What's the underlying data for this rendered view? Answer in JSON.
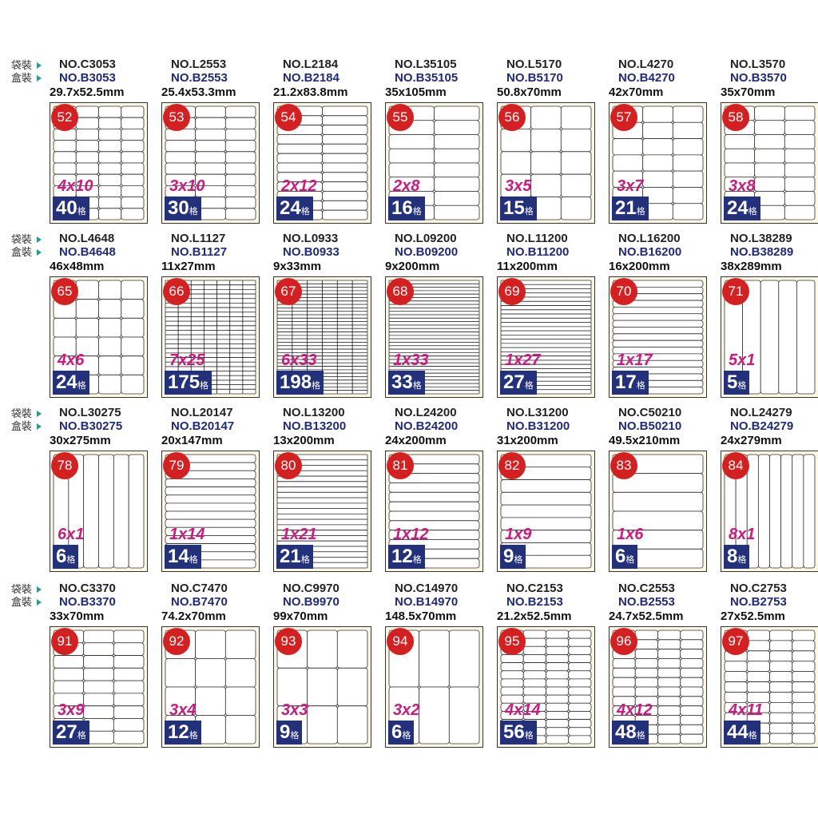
{
  "unit": "格",
  "rows": [
    {
      "labels": [
        "袋裝",
        "盒裝"
      ],
      "items": [
        {
          "bag": "NO.C3053",
          "box": "NO.B3053",
          "size": "29.7x52.5mm",
          "num": 52,
          "layout": "4x10",
          "count": 40
        },
        {
          "bag": "NO.L2553",
          "box": "NO.B2553",
          "size": "25.4x53.3mm",
          "num": 53,
          "layout": "3x10",
          "count": 30
        },
        {
          "bag": "NO.L2184",
          "box": "NO.B2184",
          "size": "21.2x83.8mm",
          "num": 54,
          "layout": "2x12",
          "count": 24
        },
        {
          "bag": "NO.L35105",
          "box": "NO.B35105",
          "size": "35x105mm",
          "num": 55,
          "layout": "2x8",
          "count": 16
        },
        {
          "bag": "NO.L5170",
          "box": "NO.B5170",
          "size": "50.8x70mm",
          "num": 56,
          "layout": "3x5",
          "count": 15
        },
        {
          "bag": "NO.L4270",
          "box": "NO.B4270",
          "size": "42x70mm",
          "num": 57,
          "layout": "3x7",
          "count": 21
        },
        {
          "bag": "NO.L3570",
          "box": "NO.B3570",
          "size": "35x70mm",
          "num": 58,
          "layout": "3x8",
          "count": 24
        }
      ]
    },
    {
      "labels": [
        "袋裝",
        "盒裝"
      ],
      "items": [
        {
          "bag": "NO.L4648",
          "box": "NO.B4648",
          "size": "46x48mm",
          "num": 65,
          "layout": "4x6",
          "count": 24
        },
        {
          "bag": "NO.L1127",
          "box": "NO.B1127",
          "size": "11x27mm",
          "num": 66,
          "layout": "7x25",
          "count": 175
        },
        {
          "bag": "NO.L0933",
          "box": "NO.B0933",
          "size": "9x33mm",
          "num": 67,
          "layout": "6x33",
          "count": 198
        },
        {
          "bag": "NO.L09200",
          "box": "NO.B09200",
          "size": "9x200mm",
          "num": 68,
          "layout": "1x33",
          "count": 33
        },
        {
          "bag": "NO.L11200",
          "box": "NO.B11200",
          "size": "11x200mm",
          "num": 69,
          "layout": "1x27",
          "count": 27
        },
        {
          "bag": "NO.L16200",
          "box": "NO.B16200",
          "size": "16x200mm",
          "num": 70,
          "layout": "1x17",
          "count": 17
        },
        {
          "bag": "NO.L38289",
          "box": "NO.B38289",
          "size": "38x289mm",
          "num": 71,
          "layout": "5x1",
          "count": 5
        }
      ]
    },
    {
      "labels": [
        "袋裝",
        "盒裝"
      ],
      "items": [
        {
          "bag": "NO.L30275",
          "box": "NO.B30275",
          "size": "30x275mm",
          "num": 78,
          "layout": "6x1",
          "count": 6
        },
        {
          "bag": "NO.L20147",
          "box": "NO.B20147",
          "size": "20x147mm",
          "num": 79,
          "layout": "1x14",
          "count": 14
        },
        {
          "bag": "NO.L13200",
          "box": "NO.B13200",
          "size": "13x200mm",
          "num": 80,
          "layout": "1x21",
          "count": 21
        },
        {
          "bag": "NO.L24200",
          "box": "NO.B24200",
          "size": "24x200mm",
          "num": 81,
          "layout": "1x12",
          "count": 12
        },
        {
          "bag": "NO.L31200",
          "box": "NO.B31200",
          "size": "31x200mm",
          "num": 82,
          "layout": "1x9",
          "count": 9
        },
        {
          "bag": "NO.C50210",
          "box": "NO.B50210",
          "size": "49.5x210mm",
          "num": 83,
          "layout": "1x6",
          "count": 6
        },
        {
          "bag": "NO.L24279",
          "box": "NO.B24279",
          "size": "24x279mm",
          "num": 84,
          "layout": "8x1",
          "count": 8
        }
      ]
    },
    {
      "labels": [
        "袋裝",
        "盒裝"
      ],
      "items": [
        {
          "bag": "NO.C3370",
          "box": "NO.B3370",
          "size": "33x70mm",
          "num": 91,
          "layout": "3x9",
          "count": 27
        },
        {
          "bag": "NO.C7470",
          "box": "NO.B7470",
          "size": "74.2x70mm",
          "num": 92,
          "layout": "3x4",
          "count": 12
        },
        {
          "bag": "NO.C9970",
          "box": "NO.B9970",
          "size": "99x70mm",
          "num": 93,
          "layout": "3x3",
          "count": 9
        },
        {
          "bag": "NO.C14970",
          "box": "NO.B14970",
          "size": "148.5x70mm",
          "num": 94,
          "layout": "3x2",
          "count": 6
        },
        {
          "bag": "NO.C2153",
          "box": "NO.B2153",
          "size": "21.2x52.5mm",
          "num": 95,
          "layout": "4x14",
          "count": 56
        },
        {
          "bag": "NO.C2553",
          "box": "NO.B2553",
          "size": "24.7x52.5mm",
          "num": 96,
          "layout": "4x12",
          "count": 48
        },
        {
          "bag": "NO.C2753",
          "box": "NO.B2753",
          "size": "27x52.5mm",
          "num": 97,
          "layout": "4x11",
          "count": 44
        }
      ]
    }
  ]
}
